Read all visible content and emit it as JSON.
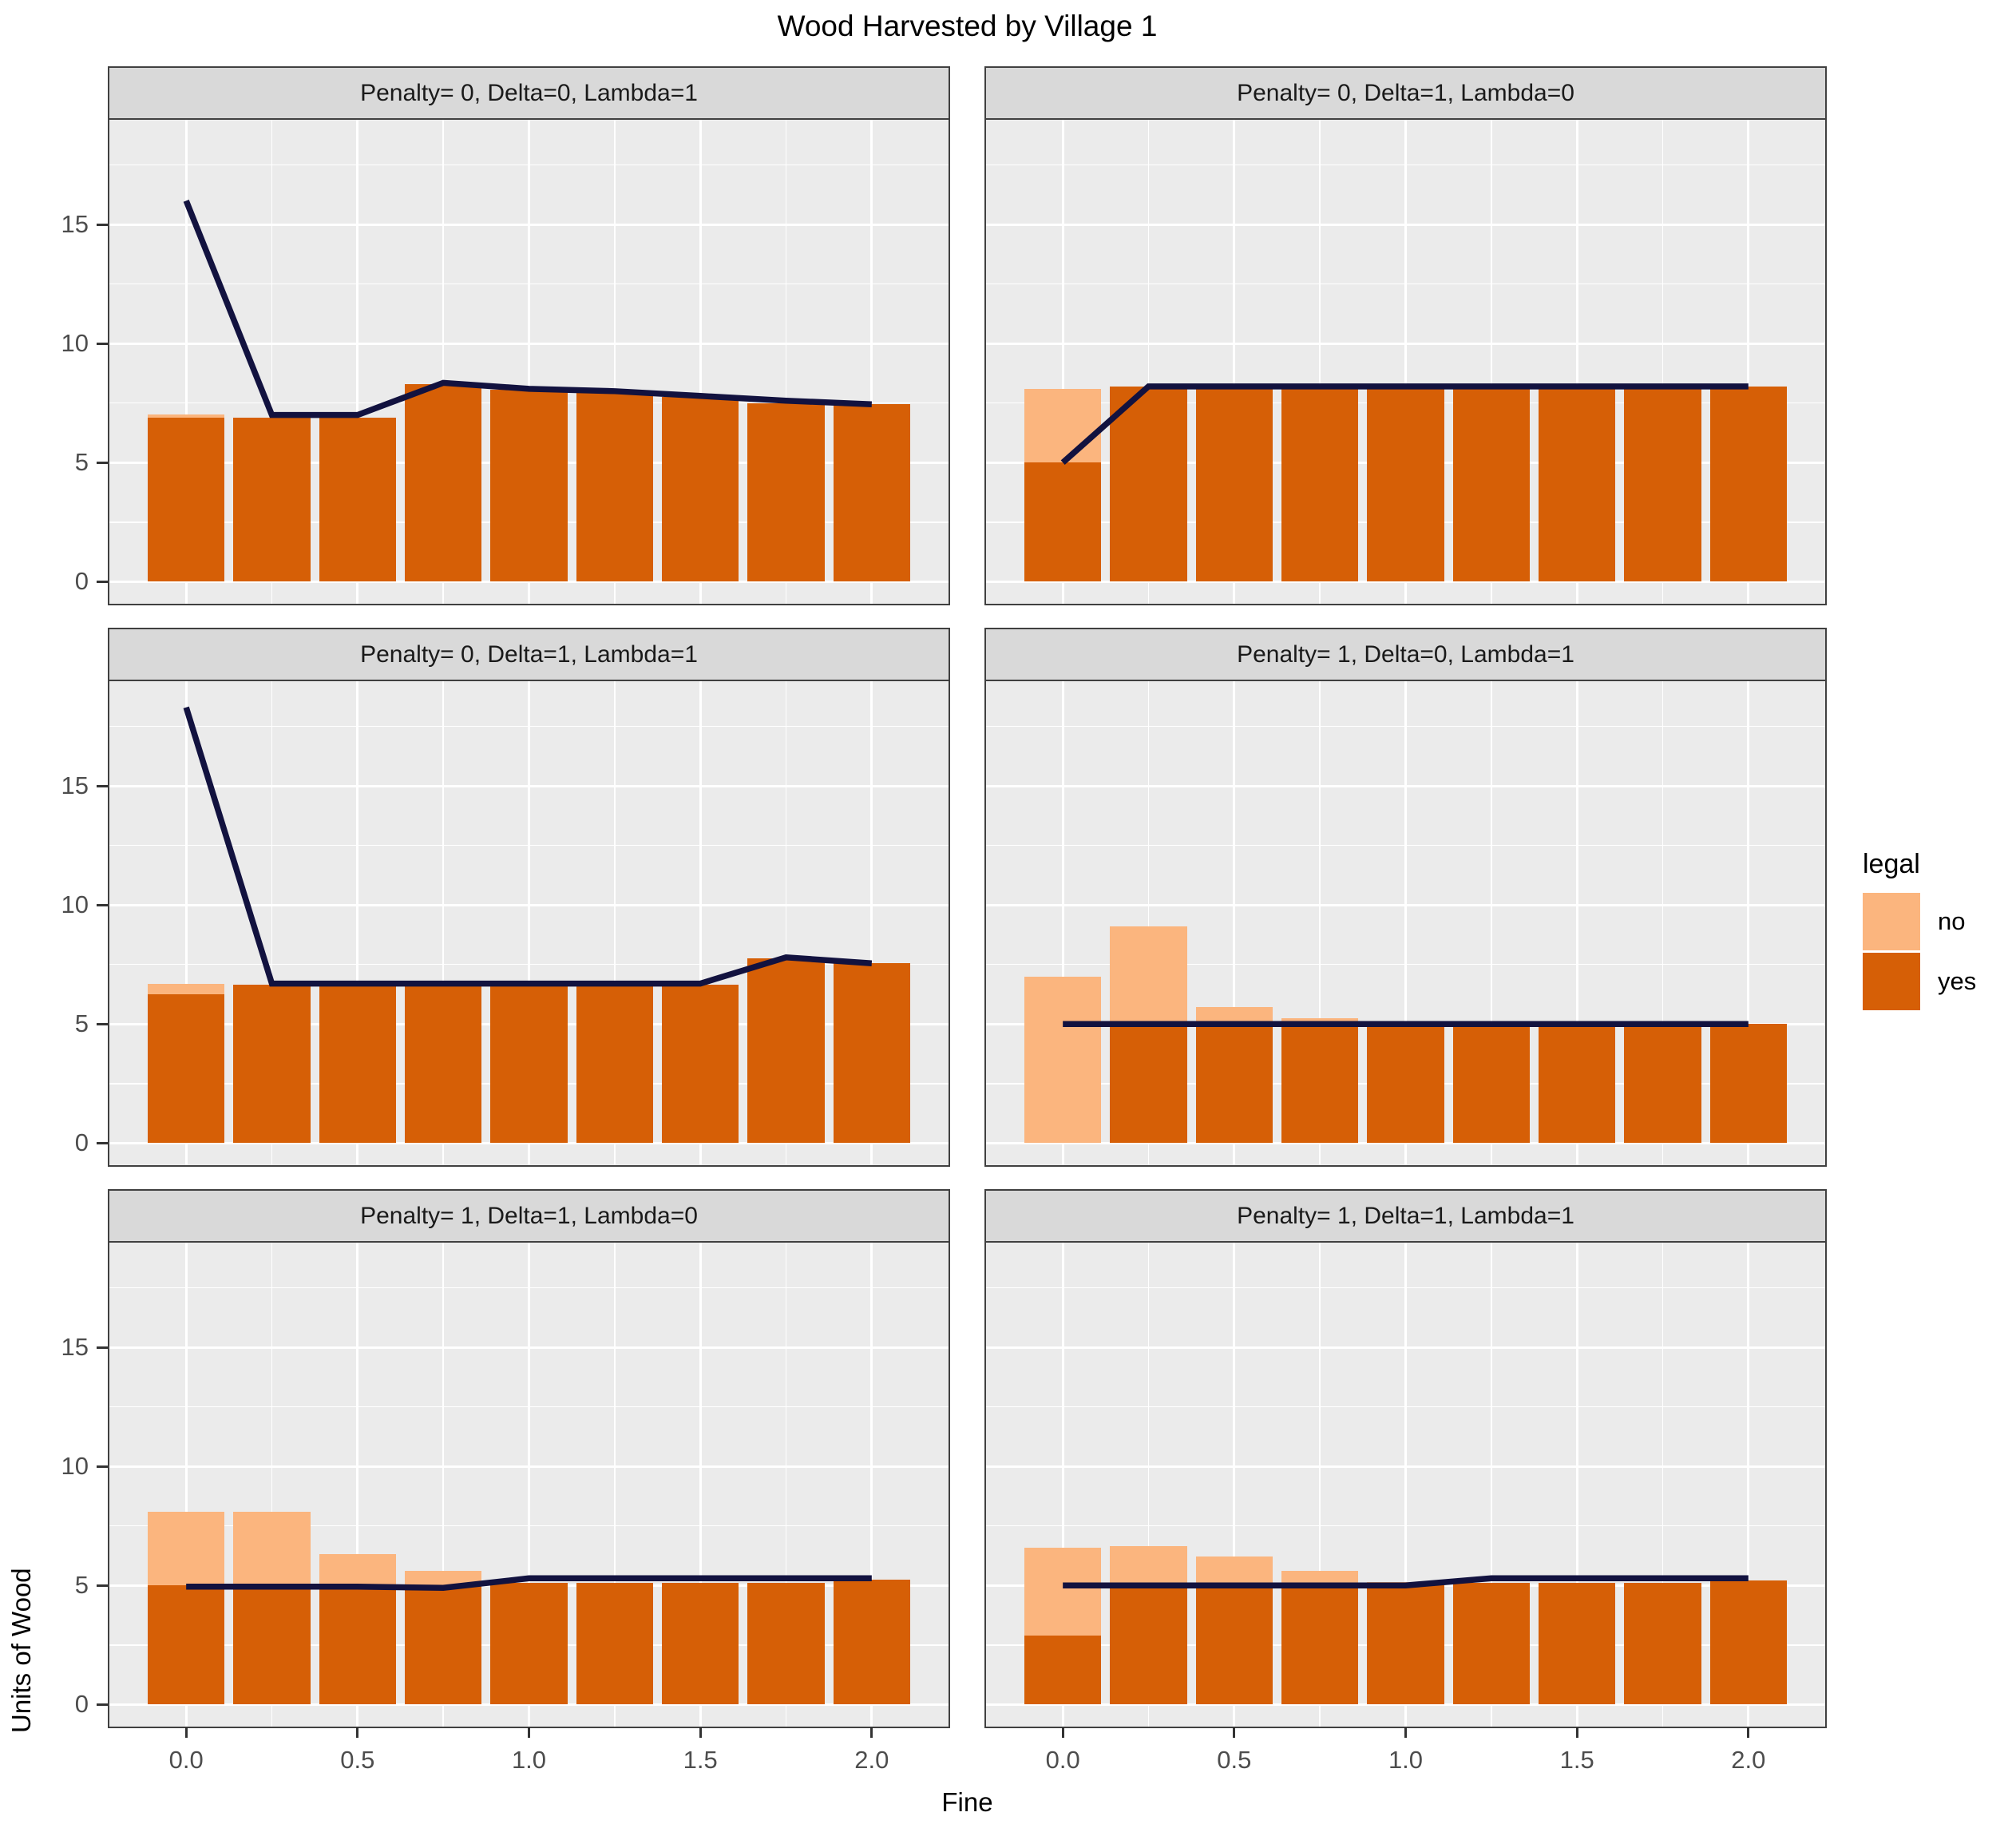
{
  "title": "Wood Harvested by Village 1",
  "axes": {
    "x_label": "Fine",
    "y_label": "Units of Wood",
    "x_ticks": [
      "0.0",
      "0.5",
      "1.0",
      "1.5",
      "2.0"
    ],
    "x_tick_values": [
      0,
      0.5,
      1.0,
      1.5,
      2.0
    ],
    "x_minor_values": [
      0.25,
      0.75,
      1.25,
      1.75
    ],
    "y_ticks": [
      "0",
      "5",
      "10",
      "15"
    ],
    "y_tick_values": [
      0,
      5,
      10,
      15
    ],
    "y_minor_values": [
      2.5,
      7.5,
      12.5,
      17.5
    ],
    "xlim": [
      -0.224,
      2.224
    ],
    "ylim": [
      -0.93,
      19.4
    ]
  },
  "legend": {
    "title": "legal",
    "items": [
      {
        "label": "no",
        "color": "#FBB57E"
      },
      {
        "label": "yes",
        "color": "#D65F06"
      }
    ]
  },
  "colors": {
    "yes": "#D65F06",
    "no": "#FBB57E",
    "line": "#12123F",
    "panel_bg": "#EBEBEB",
    "strip_bg": "#D9D9D9",
    "grid": "#FFFFFF"
  },
  "bar_width": 0.225,
  "chart_data": [
    {
      "type": "bar",
      "facet": "Penalty= 0, Delta=0, Lambda=1",
      "x": [
        0,
        0.25,
        0.5,
        0.75,
        1.0,
        1.25,
        1.5,
        1.75,
        2.0
      ],
      "series": [
        {
          "name": "yes",
          "values": [
            6.9,
            6.9,
            6.9,
            8.3,
            8.05,
            8.0,
            7.75,
            7.5,
            7.45
          ]
        },
        {
          "name": "no",
          "values": [
            0.12,
            0,
            0,
            0,
            0,
            0,
            0,
            0,
            0
          ]
        }
      ],
      "line": [
        16.0,
        7.0,
        7.0,
        8.35,
        8.1,
        8.0,
        7.8,
        7.6,
        7.45
      ]
    },
    {
      "type": "bar",
      "facet": "Penalty= 0, Delta=1, Lambda=0",
      "x": [
        0,
        0.25,
        0.5,
        0.75,
        1.0,
        1.25,
        1.5,
        1.75,
        2.0
      ],
      "series": [
        {
          "name": "yes",
          "values": [
            5.0,
            8.2,
            8.2,
            8.2,
            8.2,
            8.2,
            8.2,
            8.2,
            8.2
          ]
        },
        {
          "name": "no",
          "values": [
            3.1,
            0,
            0,
            0,
            0,
            0,
            0,
            0,
            0
          ]
        }
      ],
      "line": [
        5.0,
        8.2,
        8.2,
        8.2,
        8.2,
        8.2,
        8.2,
        8.2,
        8.2
      ]
    },
    {
      "type": "bar",
      "facet": "Penalty= 0, Delta=1, Lambda=1",
      "x": [
        0,
        0.25,
        0.5,
        0.75,
        1.0,
        1.25,
        1.5,
        1.75,
        2.0
      ],
      "series": [
        {
          "name": "yes",
          "values": [
            6.25,
            6.65,
            6.65,
            6.65,
            6.65,
            6.65,
            6.65,
            7.75,
            7.55
          ]
        },
        {
          "name": "no",
          "values": [
            0.45,
            0,
            0,
            0,
            0,
            0,
            0,
            0,
            0
          ]
        }
      ],
      "line": [
        18.3,
        6.7,
        6.7,
        6.7,
        6.7,
        6.7,
        6.7,
        7.8,
        7.55
      ]
    },
    {
      "type": "bar",
      "facet": "Penalty= 1, Delta=0, Lambda=1",
      "x": [
        0,
        0.25,
        0.5,
        0.75,
        1.0,
        1.25,
        1.5,
        1.75,
        2.0
      ],
      "series": [
        {
          "name": "yes",
          "values": [
            0,
            5.0,
            5.0,
            5.0,
            5.0,
            5.0,
            5.0,
            5.0,
            5.0
          ]
        },
        {
          "name": "no",
          "values": [
            7.0,
            4.1,
            0.7,
            0.25,
            0,
            0,
            0,
            0,
            0
          ]
        }
      ],
      "line": [
        5.0,
        5.0,
        5.0,
        5.0,
        5.0,
        5.0,
        5.0,
        5.0,
        5.0
      ]
    },
    {
      "type": "bar",
      "facet": "Penalty= 1, Delta=1, Lambda=0",
      "x": [
        0,
        0.25,
        0.5,
        0.75,
        1.0,
        1.25,
        1.5,
        1.75,
        2.0
      ],
      "series": [
        {
          "name": "yes",
          "values": [
            5.0,
            5.0,
            5.0,
            5.0,
            5.1,
            5.1,
            5.1,
            5.1,
            5.25
          ]
        },
        {
          "name": "no",
          "values": [
            3.1,
            3.1,
            1.3,
            0.6,
            0,
            0,
            0,
            0,
            0
          ]
        }
      ],
      "line": [
        4.95,
        4.95,
        4.95,
        4.9,
        5.3,
        5.3,
        5.3,
        5.3,
        5.3
      ]
    },
    {
      "type": "bar",
      "facet": "Penalty= 1, Delta=1, Lambda=1",
      "x": [
        0,
        0.25,
        0.5,
        0.75,
        1.0,
        1.25,
        1.5,
        1.75,
        2.0
      ],
      "series": [
        {
          "name": "yes",
          "values": [
            2.9,
            5.0,
            5.0,
            5.0,
            5.0,
            5.1,
            5.1,
            5.1,
            5.2
          ]
        },
        {
          "name": "no",
          "values": [
            3.7,
            1.65,
            1.2,
            0.6,
            0.15,
            0,
            0,
            0,
            0
          ]
        }
      ],
      "line": [
        5.0,
        5.0,
        5.0,
        5.0,
        5.0,
        5.3,
        5.3,
        5.3,
        5.3
      ]
    }
  ]
}
